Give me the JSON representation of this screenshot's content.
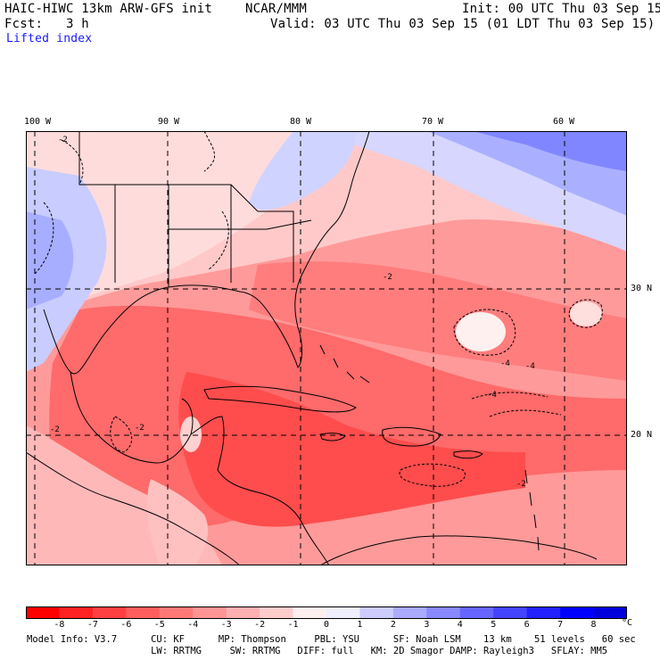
{
  "header": {
    "model": "HAIC-HIWC 13km ARW-GFS init",
    "org": "NCAR/MMM",
    "init": "Init: 00 UTC Thu 03 Sep 15",
    "fcst": "Fcst:   3 h",
    "valid": "Valid: 03 UTC Thu 03 Sep 15 (01 LDT Thu 03 Sep 15)",
    "field": "Lifted index"
  },
  "map": {
    "lon_labels": [
      "100 W",
      "90 W",
      "80 W",
      "70 W",
      "60 W"
    ],
    "lat_labels": [
      "30 N",
      "20 N"
    ],
    "contour_labels": [
      "-2",
      "-2",
      "-2",
      "-4",
      "-4",
      "-4",
      "-2",
      "-2"
    ]
  },
  "colorbar": {
    "labels": [
      "-8",
      "-7",
      "-6",
      "-5",
      "-4",
      "-3",
      "-2",
      "-1",
      "0",
      "1",
      "2",
      "3",
      "4",
      "5",
      "6",
      "7",
      "8"
    ],
    "unit": "°C",
    "colors": [
      "#ff0000",
      "#ff2222",
      "#ff4040",
      "#ff5e5e",
      "#ff7878",
      "#ff9494",
      "#ffb0b0",
      "#ffcccc",
      "#ffeeee",
      "#eeeeff",
      "#ccccff",
      "#aaaaff",
      "#8888ff",
      "#6666ff",
      "#4444ff",
      "#2222ff",
      "#0000ff",
      "#0000dd"
    ]
  },
  "info": {
    "line1": "Model Info: V3.7      CU: KF      MP: Thompson     PBL: YSU      SF: Noah LSM    13 km    51 levels   60 sec",
    "line2": "                      LW: RRTMG     SW: RRTMG   DIFF: full   KM: 2D Smagor DAMP: Rayleigh3   SFLAY: MM5"
  }
}
